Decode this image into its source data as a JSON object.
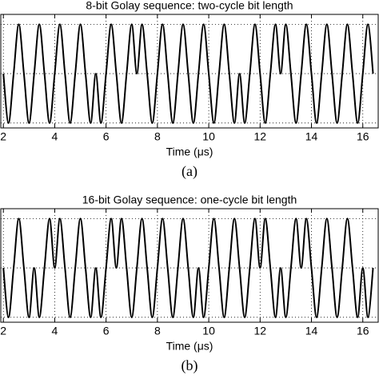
{
  "chart_data": [
    {
      "type": "line",
      "title": "8-bit Golay sequence: two-cycle bit length",
      "x_label": "Time (μs)",
      "caption": "(a)",
      "color": "#000000",
      "grid": true,
      "xlim": [
        1.9,
        16.6
      ],
      "ylim": [
        -1.1,
        1.2
      ],
      "xticks": [
        2,
        4,
        6,
        8,
        10,
        12,
        14,
        16
      ],
      "yticks": [
        -1,
        0,
        1
      ],
      "x": [
        2.0,
        2.2,
        2.4,
        2.6,
        2.8,
        3.0,
        3.2,
        3.4,
        3.6,
        3.8,
        4.0,
        4.2,
        4.4,
        4.6,
        4.8,
        5.0,
        5.2,
        5.4,
        5.6,
        5.8,
        6.0,
        6.2,
        6.4,
        6.6,
        6.8,
        7.0,
        7.2,
        7.4,
        7.6,
        7.8,
        8.0,
        8.2,
        8.4,
        8.6,
        8.8,
        9.0,
        9.2,
        9.4,
        9.6,
        9.8,
        10.0,
        10.2,
        10.4,
        10.6,
        10.8,
        11.0,
        11.2,
        11.4,
        11.6,
        11.8,
        12.0,
        12.2,
        12.4,
        12.6,
        12.8,
        13.0,
        13.2,
        13.4,
        13.6,
        13.8,
        14.0,
        14.2,
        14.4,
        14.6,
        14.8,
        15.0,
        15.2,
        15.4,
        15.6,
        15.8,
        16.0,
        16.2,
        16.4
      ],
      "values": [
        0,
        -1,
        0,
        1,
        0,
        -1,
        0,
        1,
        0,
        -1,
        0,
        1,
        0,
        -1,
        0,
        1,
        0,
        -1,
        0,
        -1,
        0,
        1,
        0,
        -1,
        0,
        1,
        0,
        1,
        0,
        -1,
        0,
        1,
        0,
        -1,
        0,
        1,
        0,
        -1,
        0,
        1,
        0,
        -1,
        0,
        1,
        0,
        -1,
        0,
        -1,
        0,
        1,
        0,
        -1,
        0,
        1,
        0,
        1,
        0,
        -1,
        0,
        1,
        0,
        -1,
        0,
        1,
        0,
        -1,
        0,
        1,
        0,
        -1,
        0,
        1,
        0
      ]
    },
    {
      "type": "line",
      "title": "16-bit Golay sequence: one-cycle bit length",
      "x_label": "Time (μs)",
      "caption": "(b)",
      "color": "#000000",
      "grid": true,
      "xlim": [
        1.9,
        16.6
      ],
      "ylim": [
        -1.1,
        1.2
      ],
      "xticks": [
        2,
        4,
        6,
        8,
        10,
        12,
        14,
        16
      ],
      "yticks": [
        -1,
        0,
        1
      ],
      "x": [
        2.0,
        2.2,
        2.4,
        2.6,
        2.8,
        3.0,
        3.2,
        3.4,
        3.6,
        3.8,
        4.0,
        4.2,
        4.4,
        4.6,
        4.8,
        5.0,
        5.2,
        5.4,
        5.6,
        5.8,
        6.0,
        6.2,
        6.4,
        6.6,
        6.8,
        7.0,
        7.2,
        7.4,
        7.6,
        7.8,
        8.0,
        8.2,
        8.4,
        8.6,
        8.8,
        9.0,
        9.2,
        9.4,
        9.6,
        9.8,
        10.0,
        10.2,
        10.4,
        10.6,
        10.8,
        11.0,
        11.2,
        11.4,
        11.6,
        11.8,
        12.0,
        12.2,
        12.4,
        12.6,
        12.8,
        13.0,
        13.2,
        13.4,
        13.6,
        13.8,
        14.0,
        14.2,
        14.4,
        14.6,
        14.8,
        15.0,
        15.2,
        15.4,
        15.6,
        15.8,
        16.0,
        16.2,
        16.4
      ],
      "values": [
        0,
        -1,
        0,
        1,
        0,
        -1,
        0,
        -1,
        0,
        1,
        0,
        1,
        0,
        -1,
        0,
        1,
        0,
        -1,
        0,
        -1,
        0,
        1,
        0,
        1,
        0,
        -1,
        0,
        1,
        0,
        -1,
        0,
        1,
        0,
        -1,
        0,
        1,
        0,
        -1,
        0,
        -1,
        0,
        1,
        0,
        -1,
        0,
        1,
        0,
        -1,
        0,
        1,
        0,
        1,
        0,
        -1,
        0,
        -1,
        0,
        1,
        0,
        1,
        0,
        -1,
        0,
        1,
        0,
        -1,
        0,
        1,
        0,
        -1,
        0,
        -1,
        0
      ]
    }
  ]
}
